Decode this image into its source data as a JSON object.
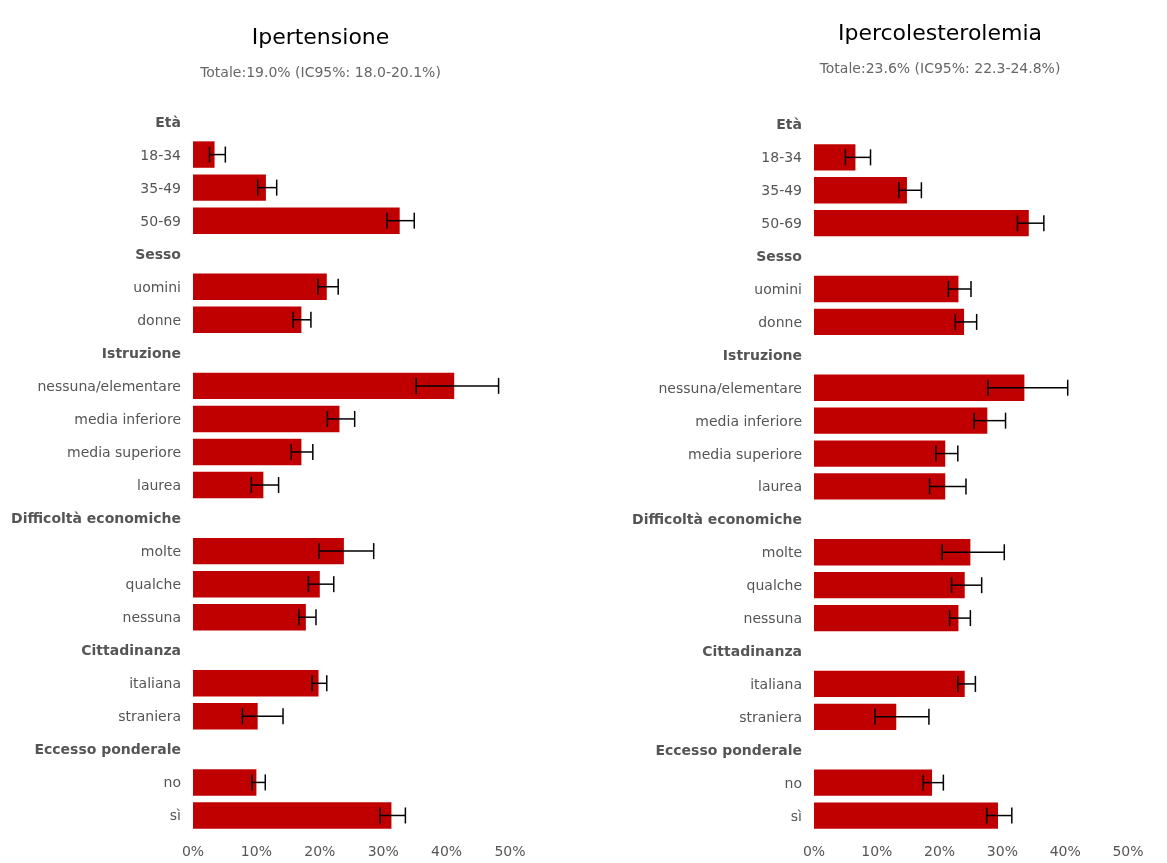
{
  "chart_data": [
    {
      "type": "bar",
      "orientation": "horizontal",
      "title": "Ipertensione",
      "subtitle": "Totale:19.0% (IC95%: 18.0-20.1%)",
      "categories": [
        "Età",
        "18-34",
        "35-49",
        "50-69",
        "Sesso",
        "uomini",
        "donne",
        "Istruzione",
        "nessuna/elementare",
        "media inferiore",
        "media superiore",
        "laurea",
        "Difficoltà economiche",
        "molte",
        "qualche",
        "nessuna",
        "Cittadinanza",
        "italiana",
        "straniera",
        "Eccesso ponderale",
        "no",
        "sì"
      ],
      "values": [
        null,
        3.4,
        11.5,
        32.6,
        null,
        21.1,
        17.1,
        null,
        41.2,
        23.1,
        17.1,
        11.1,
        null,
        23.8,
        20.0,
        17.8,
        null,
        19.8,
        10.2,
        null,
        10.0,
        31.3
      ],
      "errors": [
        null,
        [
          2.6,
          5.1
        ],
        [
          10.2,
          13.2
        ],
        [
          30.6,
          34.9
        ],
        null,
        [
          19.7,
          22.9
        ],
        [
          15.8,
          18.6
        ],
        null,
        [
          35.2,
          48.2
        ],
        [
          21.2,
          25.5
        ],
        [
          15.5,
          18.9
        ],
        [
          9.2,
          13.5
        ],
        null,
        [
          19.9,
          28.5
        ],
        [
          18.2,
          22.2
        ],
        [
          16.7,
          19.4
        ],
        null,
        [
          18.8,
          21.1
        ],
        [
          7.8,
          14.2
        ],
        null,
        [
          9.3,
          11.4
        ],
        [
          29.5,
          33.5
        ]
      ],
      "color": "#c00000",
      "xlim": [
        0,
        50
      ],
      "xticks": [
        {
          "value": 0,
          "label": "0%"
        },
        {
          "value": 10,
          "label": "10%"
        },
        {
          "value": 20,
          "label": "20%"
        },
        {
          "value": 30,
          "label": "30%"
        },
        {
          "value": 40,
          "label": "40%"
        },
        {
          "value": 50,
          "label": "50%"
        }
      ]
    },
    {
      "type": "bar",
      "orientation": "horizontal",
      "title": "Ipercolesterolemia",
      "subtitle": "Totale:23.6% (IC95%: 22.3-24.8%)",
      "categories": [
        "Età",
        "18-34",
        "35-49",
        "50-69",
        "Sesso",
        "uomini",
        "donne",
        "Istruzione",
        "nessuna/elementare",
        "media inferiore",
        "media superiore",
        "laurea",
        "Difficoltà economiche",
        "molte",
        "qualche",
        "nessuna",
        "Cittadinanza",
        "italiana",
        "straniera",
        "Eccesso ponderale",
        "no",
        "sì"
      ],
      "values": [
        null,
        6.6,
        14.8,
        34.2,
        null,
        23.0,
        23.9,
        null,
        33.5,
        27.6,
        20.9,
        20.9,
        null,
        24.9,
        24.0,
        23.0,
        null,
        24.0,
        13.1,
        null,
        18.8,
        29.3
      ],
      "errors": [
        null,
        [
          5.0,
          9.0
        ],
        [
          13.5,
          17.1
        ],
        [
          32.4,
          36.6
        ],
        null,
        [
          21.4,
          25.0
        ],
        [
          22.5,
          25.9
        ],
        null,
        [
          27.7,
          40.4
        ],
        [
          25.5,
          30.5
        ],
        [
          19.4,
          22.9
        ],
        [
          18.4,
          24.2
        ],
        null,
        [
          20.4,
          30.3
        ],
        [
          21.9,
          26.7
        ],
        [
          21.6,
          24.9
        ],
        null,
        [
          22.9,
          25.7
        ],
        [
          9.7,
          18.3
        ],
        null,
        [
          17.4,
          20.6
        ],
        [
          27.5,
          31.5
        ]
      ],
      "color": "#c00000",
      "xlim": [
        0,
        50
      ],
      "xticks": [
        {
          "value": 0,
          "label": "0%"
        },
        {
          "value": 10,
          "label": "10%"
        },
        {
          "value": 20,
          "label": "20%"
        },
        {
          "value": 30,
          "label": "30%"
        },
        {
          "value": 40,
          "label": "40%"
        },
        {
          "value": 50,
          "label": "50%"
        }
      ]
    }
  ]
}
